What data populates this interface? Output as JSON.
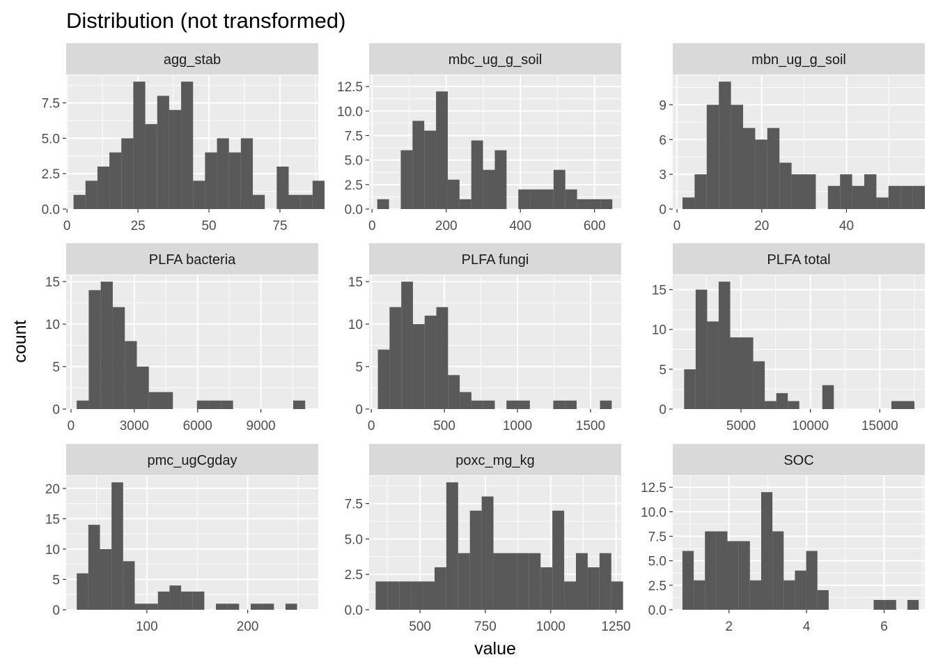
{
  "chart_data": {
    "type": "bar",
    "title": "Distribution (not transformed)",
    "xlabel": "value",
    "ylabel": "count",
    "colors": {
      "bar": "#595959",
      "panel": "#ebebeb",
      "grid": "#ffffff",
      "strip": "#d9d9d9"
    },
    "facets": [
      {
        "name": "agg_stab",
        "xlim": [
          -0.3,
          88.5
        ],
        "ylim": [
          0,
          9.45
        ],
        "xticks": [
          0,
          25,
          50,
          75
        ],
        "xtick_labels": [
          "0",
          "25",
          "50",
          "75"
        ],
        "yticks": [
          0,
          2.5,
          5,
          7.5
        ],
        "ytick_labels": [
          "0.0",
          "2.5",
          "5.0",
          "7.5"
        ],
        "bins": {
          "start": 2.3,
          "width": 4.21,
          "counts": [
            1,
            2,
            3,
            4,
            5,
            9,
            6,
            8,
            7,
            9,
            2,
            4,
            5,
            4,
            5,
            1,
            0,
            3,
            1,
            1,
            2
          ]
        }
      },
      {
        "name": "mbc_ug_g_soil",
        "xlim": [
          -8,
          672
        ],
        "ylim": [
          0,
          13.65
        ],
        "xticks": [
          0,
          200,
          400,
          600
        ],
        "xtick_labels": [
          "0",
          "200",
          "400",
          "600"
        ],
        "yticks": [
          0,
          2.5,
          5,
          7.5,
          10,
          12.5
        ],
        "ytick_labels": [
          "0.0",
          "2.5",
          "5.0",
          "7.5",
          "10.0",
          "12.5"
        ],
        "bins": {
          "start": 14,
          "width": 31.7,
          "counts": [
            1,
            0,
            6,
            9,
            8,
            12,
            3,
            1,
            7,
            4,
            6,
            0,
            2,
            2,
            2,
            4,
            2,
            1,
            1,
            1
          ]
        }
      },
      {
        "name": "mbn_ug_g_soil",
        "xlim": [
          -1,
          58.5
        ],
        "ylim": [
          0,
          11.55
        ],
        "xticks": [
          0,
          20,
          40
        ],
        "xtick_labels": [
          "0",
          "20",
          "40"
        ],
        "yticks": [
          0,
          3,
          6,
          9
        ],
        "ytick_labels": [
          "0",
          "3",
          "6",
          "9"
        ],
        "bins": {
          "start": 1.3,
          "width": 2.86,
          "counts": [
            1,
            3,
            9,
            11,
            9,
            7,
            6,
            7,
            4,
            3,
            3,
            0,
            2,
            3,
            2,
            3,
            1,
            2,
            2,
            2
          ]
        }
      },
      {
        "name": "PLFA bacteria",
        "xlim": [
          -230,
          11720
        ],
        "ylim": [
          0,
          15.75
        ],
        "xticks": [
          0,
          3000,
          6000,
          9000
        ],
        "xtick_labels": [
          "0",
          "3000",
          "6000",
          "9000"
        ],
        "yticks": [
          0,
          5,
          10,
          15
        ],
        "ytick_labels": [
          "0",
          "5",
          "10",
          "15"
        ],
        "bins": {
          "start": 270,
          "width": 570,
          "counts": [
            1,
            14,
            15,
            12,
            8,
            5,
            2,
            2,
            0,
            0,
            1,
            1,
            1,
            0,
            0,
            0,
            0,
            0,
            1
          ]
        }
      },
      {
        "name": "PLFA fungi",
        "xlim": [
          -15,
          1710
        ],
        "ylim": [
          0,
          15.75
        ],
        "xticks": [
          0,
          500,
          1000,
          1500
        ],
        "xtick_labels": [
          "0",
          "500",
          "1000",
          "1500"
        ],
        "yticks": [
          0,
          5,
          10,
          15
        ],
        "ytick_labels": [
          "0",
          "5",
          "10",
          "15"
        ],
        "bins": {
          "start": 45,
          "width": 80,
          "counts": [
            7,
            12,
            15,
            10,
            11,
            12,
            4,
            2,
            1,
            1,
            0,
            1,
            1,
            0,
            0,
            1,
            1,
            0,
            0,
            1
          ]
        }
      },
      {
        "name": "PLFA total",
        "xlim": [
          80,
          18250
        ],
        "ylim": [
          0,
          16.8
        ],
        "xticks": [
          5000,
          10000,
          15000
        ],
        "xtick_labels": [
          "5000",
          "10000",
          "15000"
        ],
        "yticks": [
          0,
          5,
          10,
          15
        ],
        "ytick_labels": [
          "0",
          "5",
          "10",
          "15"
        ],
        "bins": {
          "start": 900,
          "width": 830,
          "counts": [
            5,
            15,
            11,
            16,
            9,
            9,
            6,
            1,
            2,
            1,
            0,
            0,
            3,
            0,
            0,
            0,
            0,
            0,
            1,
            1
          ]
        }
      },
      {
        "name": "pmc_ugCgday",
        "xlim": [
          20,
          270
        ],
        "ylim": [
          0,
          22.05
        ],
        "xticks": [
          100,
          200
        ],
        "xtick_labels": [
          "100",
          "200"
        ],
        "yticks": [
          0,
          5,
          10,
          15,
          20
        ],
        "ytick_labels": [
          "0",
          "5",
          "10",
          "15",
          "20"
        ],
        "bins": {
          "start": 30.5,
          "width": 11.5,
          "counts": [
            6,
            14,
            10,
            21,
            8,
            1,
            1,
            3,
            4,
            3,
            3,
            0,
            1,
            1,
            0,
            1,
            1,
            0,
            1
          ]
        }
      },
      {
        "name": "poxc_mg_kg",
        "xlim": [
          305,
          1270
        ],
        "ylim": [
          0,
          9.45
        ],
        "xticks": [
          500,
          750,
          1000,
          1250
        ],
        "xtick_labels": [
          "500",
          "750",
          "1000",
          "1250"
        ],
        "yticks": [
          0,
          2.5,
          5,
          7.5
        ],
        "ytick_labels": [
          "0.0",
          "2.5",
          "5.0",
          "7.5"
        ],
        "bins": {
          "start": 330,
          "width": 45.1,
          "counts": [
            2,
            2,
            2,
            2,
            2,
            3,
            9,
            4,
            7,
            8,
            4,
            4,
            4,
            4,
            3,
            7,
            2,
            4,
            3,
            4,
            2
          ]
        }
      },
      {
        "name": "SOC",
        "xlim": [
          0.55,
          7.05
        ],
        "ylim": [
          0,
          13.65
        ],
        "xticks": [
          2,
          4,
          6
        ],
        "xtick_labels": [
          "2",
          "4",
          "6"
        ],
        "yticks": [
          0,
          2.5,
          5,
          7.5,
          10,
          12.5
        ],
        "ytick_labels": [
          "0.0",
          "2.5",
          "5.0",
          "7.5",
          "10.0",
          "12.5"
        ],
        "bins": {
          "start": 0.8,
          "width": 0.29,
          "counts": [
            6,
            3,
            8,
            8,
            7,
            7,
            3,
            12,
            8,
            3,
            4,
            6,
            2,
            0,
            0,
            0,
            0,
            1,
            1,
            0,
            1
          ]
        }
      }
    ]
  }
}
